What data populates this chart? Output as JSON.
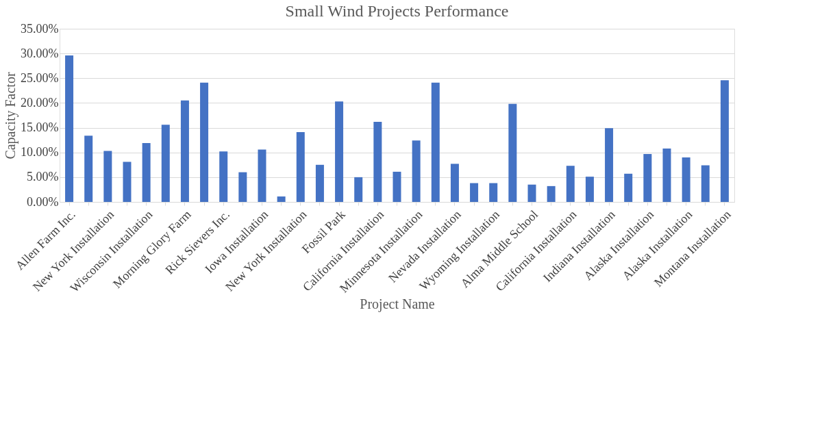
{
  "chart_data": {
    "type": "bar",
    "title": "Small Wind Projects  Performance",
    "xlabel": "Project Name",
    "ylabel": "Capacity Factor",
    "categories": [
      "Allen Farm Inc.",
      null,
      "New York Installation",
      null,
      "Wisconsin Installation",
      null,
      "Morning Glory Farm",
      null,
      "Rick Sievers Inc.",
      null,
      "Iowa Installation",
      null,
      "New York Installation",
      null,
      "Fossil Park",
      null,
      "California Installation",
      null,
      "Minnesota Installation",
      null,
      "Nevada Installation",
      null,
      "Wyoming Installation",
      null,
      "Alma Middle School",
      null,
      "California Installation",
      null,
      "Indiana Installation",
      null,
      "Alaska Installation",
      null,
      "Alaska Installation",
      null,
      "Montana Installation"
    ],
    "values": [
      29.6,
      13.4,
      10.3,
      8.1,
      11.9,
      15.6,
      20.5,
      24.1,
      10.2,
      6.0,
      10.6,
      1.1,
      14.1,
      7.5,
      20.3,
      5.0,
      16.2,
      6.1,
      12.4,
      24.1,
      7.7,
      3.8,
      3.8,
      19.8,
      3.5,
      3.2,
      7.3,
      5.1,
      14.9,
      5.7,
      9.7,
      10.8,
      9.0,
      7.4,
      24.6
    ],
    "color": "#4472c4",
    "ylim": [
      0,
      35
    ],
    "yticks": [
      {
        "value": 0,
        "label": "0.00%"
      },
      {
        "value": 5,
        "label": "5.00%"
      },
      {
        "value": 10,
        "label": "10.00%"
      },
      {
        "value": 15,
        "label": "15.00%"
      },
      {
        "value": 20,
        "label": "20.00%"
      },
      {
        "value": 25,
        "label": "25.00%"
      },
      {
        "value": 30,
        "label": "30.00%"
      },
      {
        "value": 35,
        "label": "35.00%"
      }
    ],
    "grid": "y"
  }
}
